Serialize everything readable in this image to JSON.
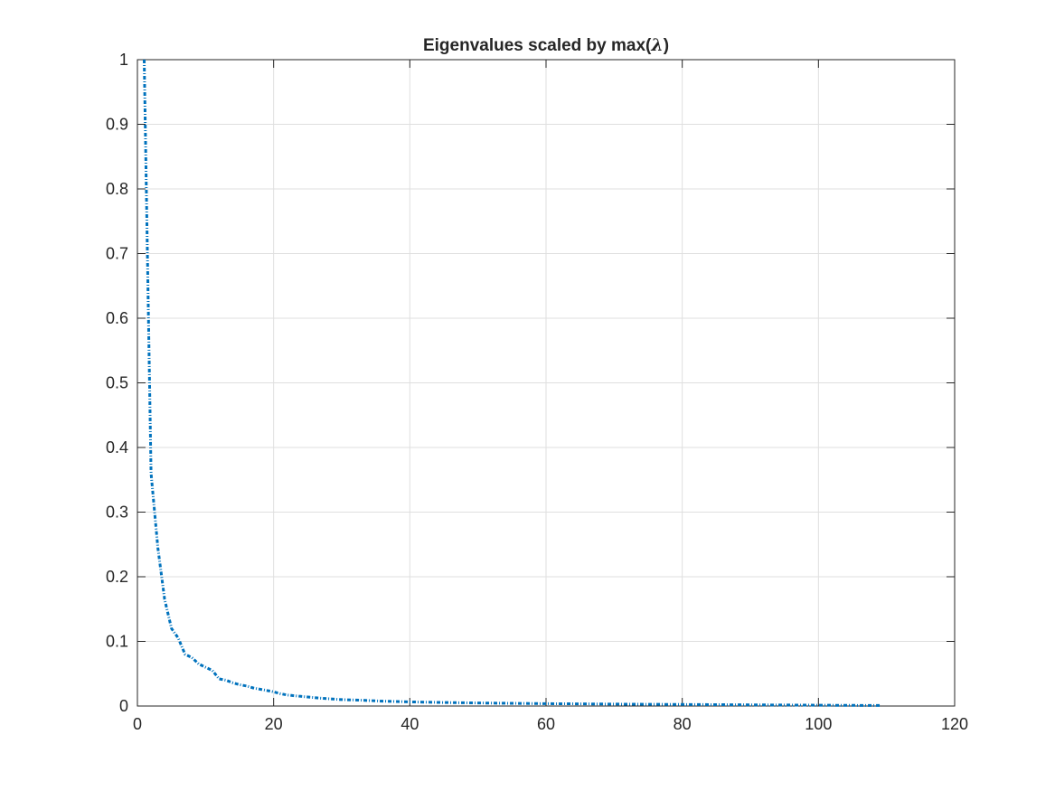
{
  "chart_data": {
    "type": "line",
    "title_prefix": "Eigenvalues scaled by max(",
    "title_symbol": "λ",
    "title_suffix": ")",
    "xlabel": "",
    "ylabel": "",
    "xlim": [
      0,
      120
    ],
    "ylim": [
      0,
      1
    ],
    "xticks": [
      0,
      20,
      40,
      60,
      80,
      100,
      120
    ],
    "xtick_labels": [
      "0",
      "20",
      "40",
      "60",
      "80",
      "100",
      "120"
    ],
    "yticks": [
      0,
      0.1,
      0.2,
      0.3,
      0.4,
      0.5,
      0.6,
      0.7,
      0.8,
      0.9,
      1
    ],
    "ytick_labels": [
      "0",
      "0.1",
      "0.2",
      "0.3",
      "0.4",
      "0.5",
      "0.6",
      "0.7",
      "0.8",
      "0.9",
      "1"
    ],
    "grid": true,
    "legend": "none",
    "series": [
      {
        "color": "#0072bd",
        "x": [
          1,
          2,
          3,
          4,
          5,
          6,
          7,
          8,
          9,
          10,
          11,
          12,
          13,
          14,
          15,
          16,
          17,
          18,
          19,
          20,
          21,
          22,
          23,
          24,
          25,
          27,
          30,
          33,
          36,
          40,
          45,
          50,
          55,
          60,
          65,
          70,
          75,
          80,
          85,
          90,
          95,
          100,
          105,
          109
        ],
        "y": [
          1.0,
          0.36,
          0.245,
          0.165,
          0.12,
          0.105,
          0.08,
          0.075,
          0.065,
          0.06,
          0.055,
          0.042,
          0.04,
          0.036,
          0.033,
          0.031,
          0.028,
          0.026,
          0.024,
          0.022,
          0.019,
          0.017,
          0.016,
          0.015,
          0.014,
          0.012,
          0.01,
          0.009,
          0.0075,
          0.0065,
          0.0055,
          0.0048,
          0.0042,
          0.0037,
          0.0033,
          0.003,
          0.0027,
          0.0024,
          0.0021,
          0.0018,
          0.0015,
          0.0012,
          0.001,
          0.0008
        ]
      }
    ]
  }
}
